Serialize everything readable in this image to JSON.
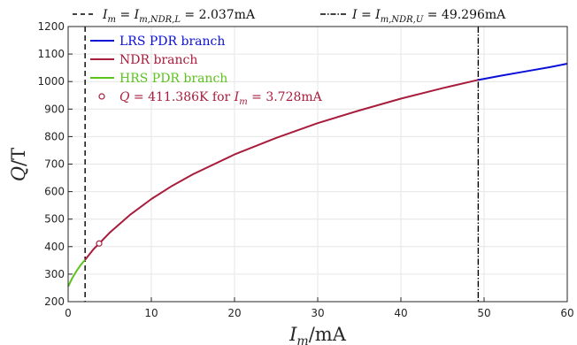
{
  "chart_data": {
    "type": "line",
    "xlabel": {
      "var": "I",
      "sub": "m",
      "unit": "/mA"
    },
    "ylabel": {
      "var": "Q",
      "unit": "/T"
    },
    "xlim": [
      0,
      60
    ],
    "ylim": [
      200,
      1200
    ],
    "x_ticks": [
      0,
      10,
      20,
      30,
      40,
      50,
      60
    ],
    "y_ticks": [
      200,
      300,
      400,
      500,
      600,
      700,
      800,
      900,
      1000,
      1100,
      1200
    ],
    "grid": true,
    "legend_position": "top-left",
    "vlines": [
      {
        "x": 2.037,
        "style": "dashed",
        "color": "#000000",
        "label": {
          "var": "I",
          "sub": "m",
          "eq": " = ",
          "var2": "I",
          "sub2": "m,NDR,L",
          "value": " = 2.037mA"
        }
      },
      {
        "x": 49.296,
        "style": "dashdot",
        "color": "#000000",
        "label": {
          "var": "I",
          "sub": "",
          "eq": " = ",
          "var2": "I",
          "sub2": "m,NDR,U",
          "value": " = 49.296mA"
        }
      }
    ],
    "series": [
      {
        "name": "LRS PDR branch",
        "color": "#0a10d8",
        "x": [
          49.296,
          52,
          55,
          58,
          60
        ],
        "y": [
          1006,
          1021,
          1037,
          1053,
          1065
        ]
      },
      {
        "name": "NDR branch",
        "color": "#a81c3c",
        "x": [
          2.037,
          3,
          3.728,
          5,
          7.5,
          10,
          12.5,
          15,
          20,
          25,
          30,
          35,
          40,
          45,
          49.296
        ],
        "y": [
          352,
          389,
          411,
          451,
          517,
          573,
          621,
          663,
          735,
          795,
          849,
          895,
          938,
          976,
          1006
        ]
      },
      {
        "name": "HRS PDR branch",
        "color": "#5cc21c",
        "x": [
          0,
          0.5,
          1,
          1.5,
          2.037
        ],
        "y": [
          255,
          286,
          311,
          333,
          352
        ]
      }
    ],
    "marker": {
      "x": 3.728,
      "y": 411.386,
      "color": "#a81c3c",
      "label": {
        "var": "Q",
        "value": " = 411.386K for ",
        "var2": "I",
        "sub2": "m",
        "value2": " = 3.728mA"
      }
    }
  }
}
